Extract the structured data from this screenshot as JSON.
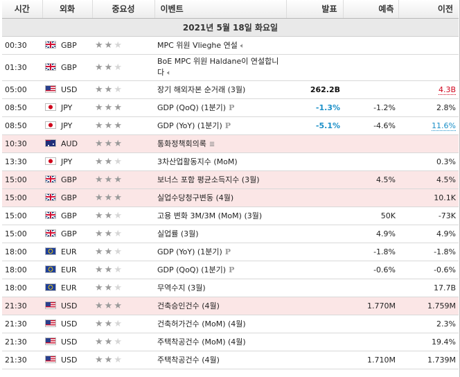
{
  "header": {
    "time": "시간",
    "currency": "외화",
    "importance": "중요성",
    "event": "이벤트",
    "actual": "발표",
    "forecast": "예측",
    "previous": "이전"
  },
  "day_label": "2021년 5월 18일 화요일",
  "events": [
    {
      "time": "00:30",
      "flag": "gb-flag-icon",
      "currency": "GBP",
      "stars": 2,
      "name": "MPC 위원 Vlieghe 연설",
      "icon": "speaker-icon",
      "actual": "",
      "forecast": "",
      "previous": "",
      "highlight": false
    },
    {
      "time": "01:30",
      "flag": "gb-flag-icon",
      "currency": "GBP",
      "stars": 2,
      "name": "BoE MPC 위원 Haldane이 연설합니다",
      "icon": "speaker-icon",
      "actual": "",
      "forecast": "",
      "previous": "",
      "highlight": false
    },
    {
      "time": "05:00",
      "flag": "us-flag-icon",
      "currency": "USD",
      "stars": 2,
      "name": "장기 해외자본 순거래 (3월)",
      "icon": "",
      "actual": "262.2B",
      "actual_color": "dark",
      "forecast": "",
      "previous": "4.3B",
      "previous_color": "red",
      "highlight": false
    },
    {
      "time": "08:50",
      "flag": "jp-flag-icon",
      "currency": "JPY",
      "stars": 3,
      "name": "GDP (QoQ) (1분기)",
      "icon": "preliminary-icon",
      "actual": "-1.3%",
      "actual_color": "blue",
      "forecast": "-1.2%",
      "previous": "2.8%",
      "highlight": false
    },
    {
      "time": "08:50",
      "flag": "jp-flag-icon",
      "currency": "JPY",
      "stars": 3,
      "name": "GDP (YoY) (1분기)",
      "icon": "preliminary-icon",
      "actual": "-5.1%",
      "actual_color": "blue",
      "forecast": "-4.6%",
      "previous": "11.6%",
      "previous_color": "blue",
      "highlight": false
    },
    {
      "time": "10:30",
      "flag": "au-flag-icon",
      "currency": "AUD",
      "stars": 3,
      "name": "통화정책회의록",
      "icon": "document-icon",
      "actual": "",
      "forecast": "",
      "previous": "",
      "highlight": true
    },
    {
      "time": "13:30",
      "flag": "jp-flag-icon",
      "currency": "JPY",
      "stars": 2,
      "name": "3차산업활동지수 (MoM)",
      "icon": "",
      "actual": "",
      "forecast": "",
      "previous": "0.3%",
      "highlight": false
    },
    {
      "time": "15:00",
      "flag": "gb-flag-icon",
      "currency": "GBP",
      "stars": 3,
      "name": "보너스 포함 평균소득지수 (3월)",
      "icon": "",
      "actual": "",
      "forecast": "4.5%",
      "previous": "4.5%",
      "highlight": true
    },
    {
      "time": "15:00",
      "flag": "gb-flag-icon",
      "currency": "GBP",
      "stars": 3,
      "name": "실업수당청구변동 (4월)",
      "icon": "",
      "actual": "",
      "forecast": "",
      "previous": "10.1K",
      "highlight": true
    },
    {
      "time": "15:00",
      "flag": "gb-flag-icon",
      "currency": "GBP",
      "stars": 2,
      "name": "고용 변화 3M/3M (MoM) (3월)",
      "icon": "",
      "actual": "",
      "forecast": "50K",
      "previous": "-73K",
      "highlight": false
    },
    {
      "time": "15:00",
      "flag": "gb-flag-icon",
      "currency": "GBP",
      "stars": 2,
      "name": "실업률 (3월)",
      "icon": "",
      "actual": "",
      "forecast": "4.9%",
      "previous": "4.9%",
      "highlight": false
    },
    {
      "time": "18:00",
      "flag": "eu-flag-icon",
      "currency": "EUR",
      "stars": 2,
      "name": "GDP (YoY) (1분기)",
      "icon": "preliminary-icon",
      "actual": "",
      "forecast": "-1.8%",
      "previous": "-1.8%",
      "highlight": false
    },
    {
      "time": "18:00",
      "flag": "eu-flag-icon",
      "currency": "EUR",
      "stars": 2,
      "name": "GDP (QoQ) (1분기)",
      "icon": "preliminary-icon",
      "actual": "",
      "forecast": "-0.6%",
      "previous": "-0.6%",
      "highlight": false
    },
    {
      "time": "18:00",
      "flag": "eu-flag-icon",
      "currency": "EUR",
      "stars": 2,
      "name": "무역수지 (3월)",
      "icon": "",
      "actual": "",
      "forecast": "",
      "previous": "17.7B",
      "highlight": false
    },
    {
      "time": "21:30",
      "flag": "us-flag-icon",
      "currency": "USD",
      "stars": 3,
      "name": "건축승인건수 (4월)",
      "icon": "",
      "actual": "",
      "forecast": "1.770M",
      "previous": "1.759M",
      "highlight": true
    },
    {
      "time": "21:30",
      "flag": "us-flag-icon",
      "currency": "USD",
      "stars": 2,
      "name": "건축허가건수 (MoM) (4월)",
      "icon": "",
      "actual": "",
      "forecast": "",
      "previous": "2.3%",
      "highlight": false
    },
    {
      "time": "21:30",
      "flag": "us-flag-icon",
      "currency": "USD",
      "stars": 2,
      "name": "주택착공건수 (MoM) (4월)",
      "icon": "",
      "actual": "",
      "forecast": "",
      "previous": "19.4%",
      "highlight": false
    },
    {
      "time": "21:30",
      "flag": "us-flag-icon",
      "currency": "USD",
      "stars": 2,
      "name": "주택착공건수 (4월)",
      "icon": "",
      "actual": "",
      "forecast": "1.710M",
      "previous": "1.739M",
      "highlight": false
    }
  ],
  "colors": {
    "highlight_row": "#fbe6e6",
    "actual_blue": "#1a8fc8",
    "previous_red": "#d0021b",
    "star_on": "#9a9a9a",
    "star_off": "#d6d6d6"
  }
}
